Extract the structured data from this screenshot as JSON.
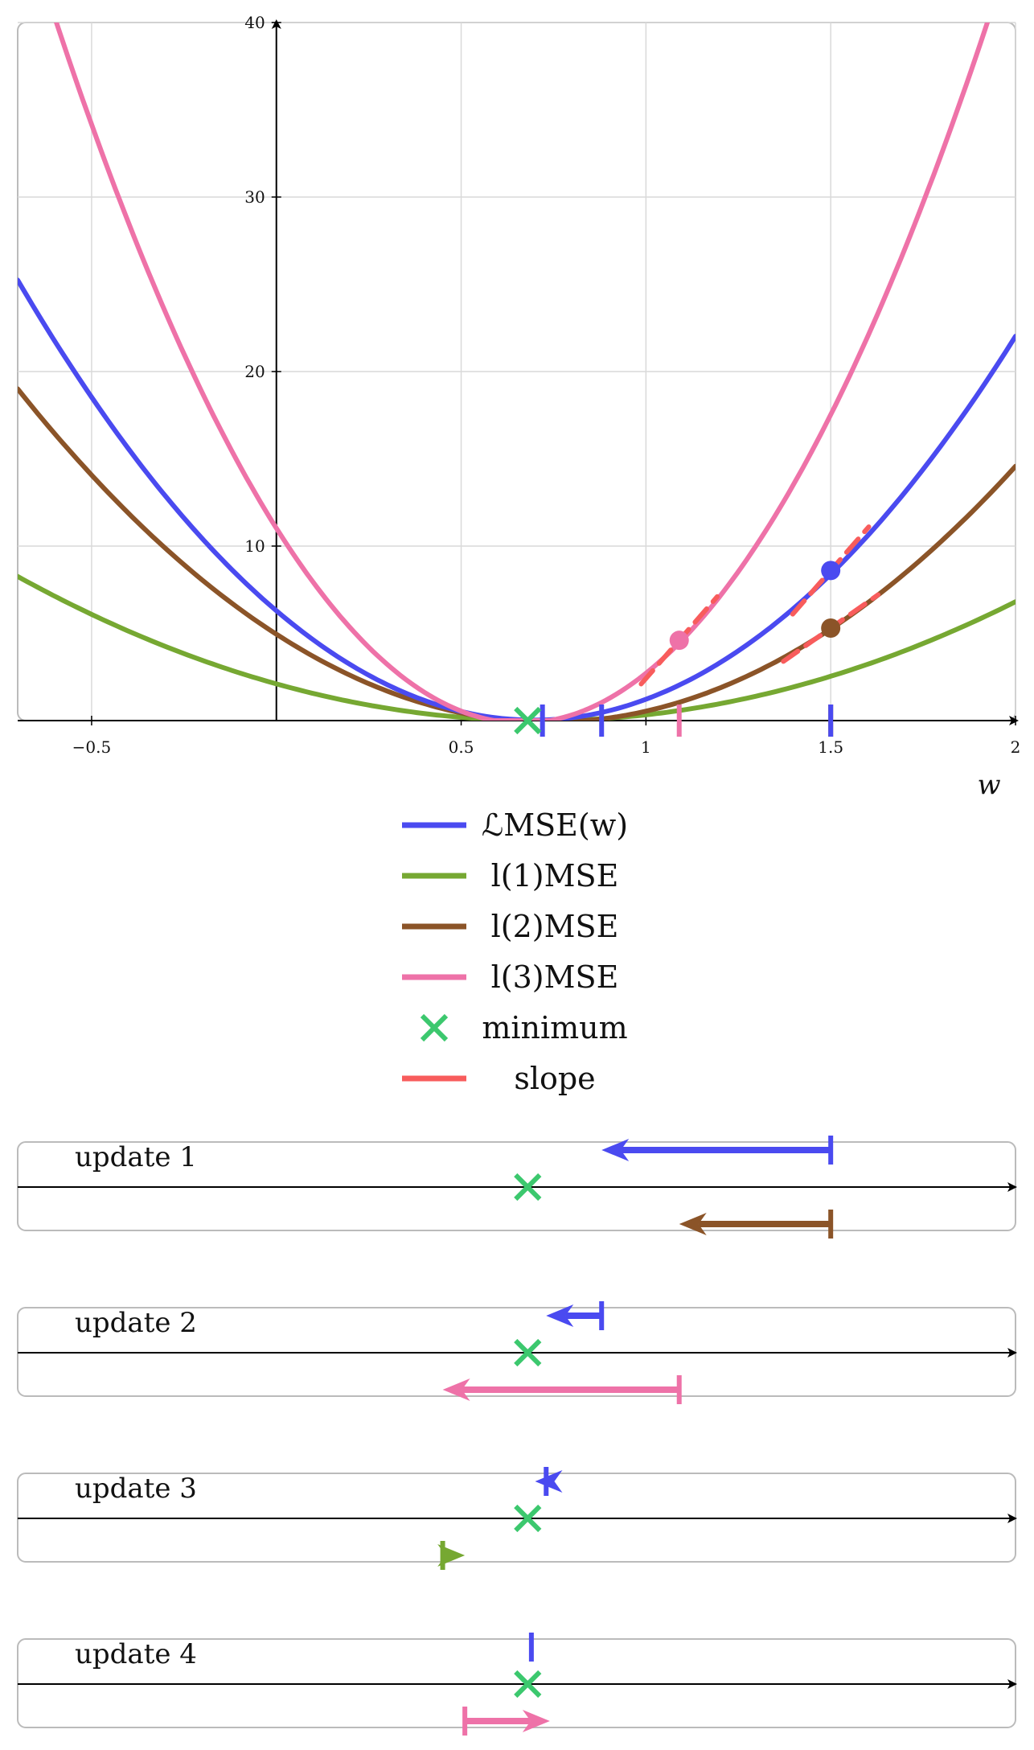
{
  "colors": {
    "mse": "#4a4af0",
    "l1": "#76a832",
    "l2": "#8b5428",
    "l3": "#ee72a8",
    "minimum": "#3cc86e",
    "slope": "#f85c5c",
    "grid": "#d9d9d9",
    "frame": "#bbbbbb"
  },
  "chart_data": {
    "type": "line",
    "xlabel": "w",
    "ylabel": "",
    "xlim": [
      -0.7,
      2.0
    ],
    "ylim": [
      0,
      40
    ],
    "xticks": [
      -0.5,
      0.5,
      1,
      1.5,
      2
    ],
    "xtick_labels": [
      "−0.5",
      "0.5",
      "1",
      "1.5",
      "2"
    ],
    "yticks": [
      10,
      20,
      30,
      40
    ],
    "ytick_labels": [
      "10",
      "20",
      "30",
      "40"
    ],
    "grid": true,
    "legend_position": "below",
    "series": [
      {
        "key": "mse",
        "name": "ℒMSE(w)",
        "x": [
          -0.7,
          -0.5,
          0,
          0.5,
          0.7,
          1,
          1.5,
          2
        ],
        "y": [
          24.2,
          20.0,
          6.0,
          0.4,
          0.05,
          1.0,
          8.6,
          22.0
        ]
      },
      {
        "key": "l1",
        "name": "l(1)MSE",
        "x": [
          -0.7,
          -0.5,
          0,
          0.5,
          0.7,
          1,
          1.5,
          2
        ],
        "y": [
          7.9,
          6.6,
          2.0,
          0.1,
          0.01,
          0.3,
          2.6,
          6.8
        ]
      },
      {
        "key": "l2",
        "name": "l(2)MSE",
        "x": [
          -0.7,
          -0.5,
          0,
          0.5,
          0.7,
          1,
          1.5,
          2
        ],
        "y": [
          18.5,
          15.0,
          4.4,
          0.3,
          0.05,
          0.7,
          5.3,
          14.5
        ]
      },
      {
        "key": "l3",
        "name": "l(3)MSE",
        "x": [
          -0.6,
          -0.5,
          0,
          0.5,
          0.7,
          1,
          1.5,
          1.93
        ],
        "y": [
          39.7,
          35.0,
          10.6,
          0.8,
          0.05,
          2.3,
          17.8,
          40.3
        ]
      }
    ],
    "minimum": {
      "name": "minimum",
      "x": 0.68,
      "y": 0
    },
    "slope_legend": "slope",
    "points": [
      {
        "series": "mse",
        "x": 1.5,
        "y": 8.6,
        "slope": 24.3
      },
      {
        "series": "l2",
        "x": 1.5,
        "y": 5.3,
        "slope": 14.9
      },
      {
        "series": "l3",
        "x": 1.09,
        "y": 4.6,
        "slope": 24.3
      }
    ],
    "axis_markers": [
      {
        "series": "mse",
        "x": 0.72
      },
      {
        "series": "mse",
        "x": 0.88
      },
      {
        "series": "l3",
        "x": 1.09
      },
      {
        "series": "l2",
        "x": 1.5
      },
      {
        "series": "mse",
        "x": 1.5
      }
    ],
    "updates": [
      {
        "label": "update 1",
        "arrows": [
          {
            "series": "mse",
            "from": 1.5,
            "to": 0.88,
            "side": "above"
          },
          {
            "series": "l2",
            "from": 1.5,
            "to": 1.09,
            "side": "below"
          }
        ]
      },
      {
        "label": "update 2",
        "arrows": [
          {
            "series": "mse",
            "from": 0.88,
            "to": 0.73,
            "side": "above"
          },
          {
            "series": "l3",
            "from": 1.09,
            "to": 0.45,
            "side": "below"
          }
        ]
      },
      {
        "label": "update 3",
        "arrows": [
          {
            "series": "mse",
            "from": 0.73,
            "to": 0.7,
            "side": "above"
          },
          {
            "series": "l1",
            "from": 0.45,
            "to": 0.51,
            "side": "below"
          }
        ]
      },
      {
        "label": "update 4",
        "arrows": [
          {
            "series": "mse",
            "from": 0.69,
            "to": 0.69,
            "side": "above"
          },
          {
            "series": "l3",
            "from": 0.51,
            "to": 0.74,
            "side": "below"
          }
        ]
      }
    ]
  }
}
